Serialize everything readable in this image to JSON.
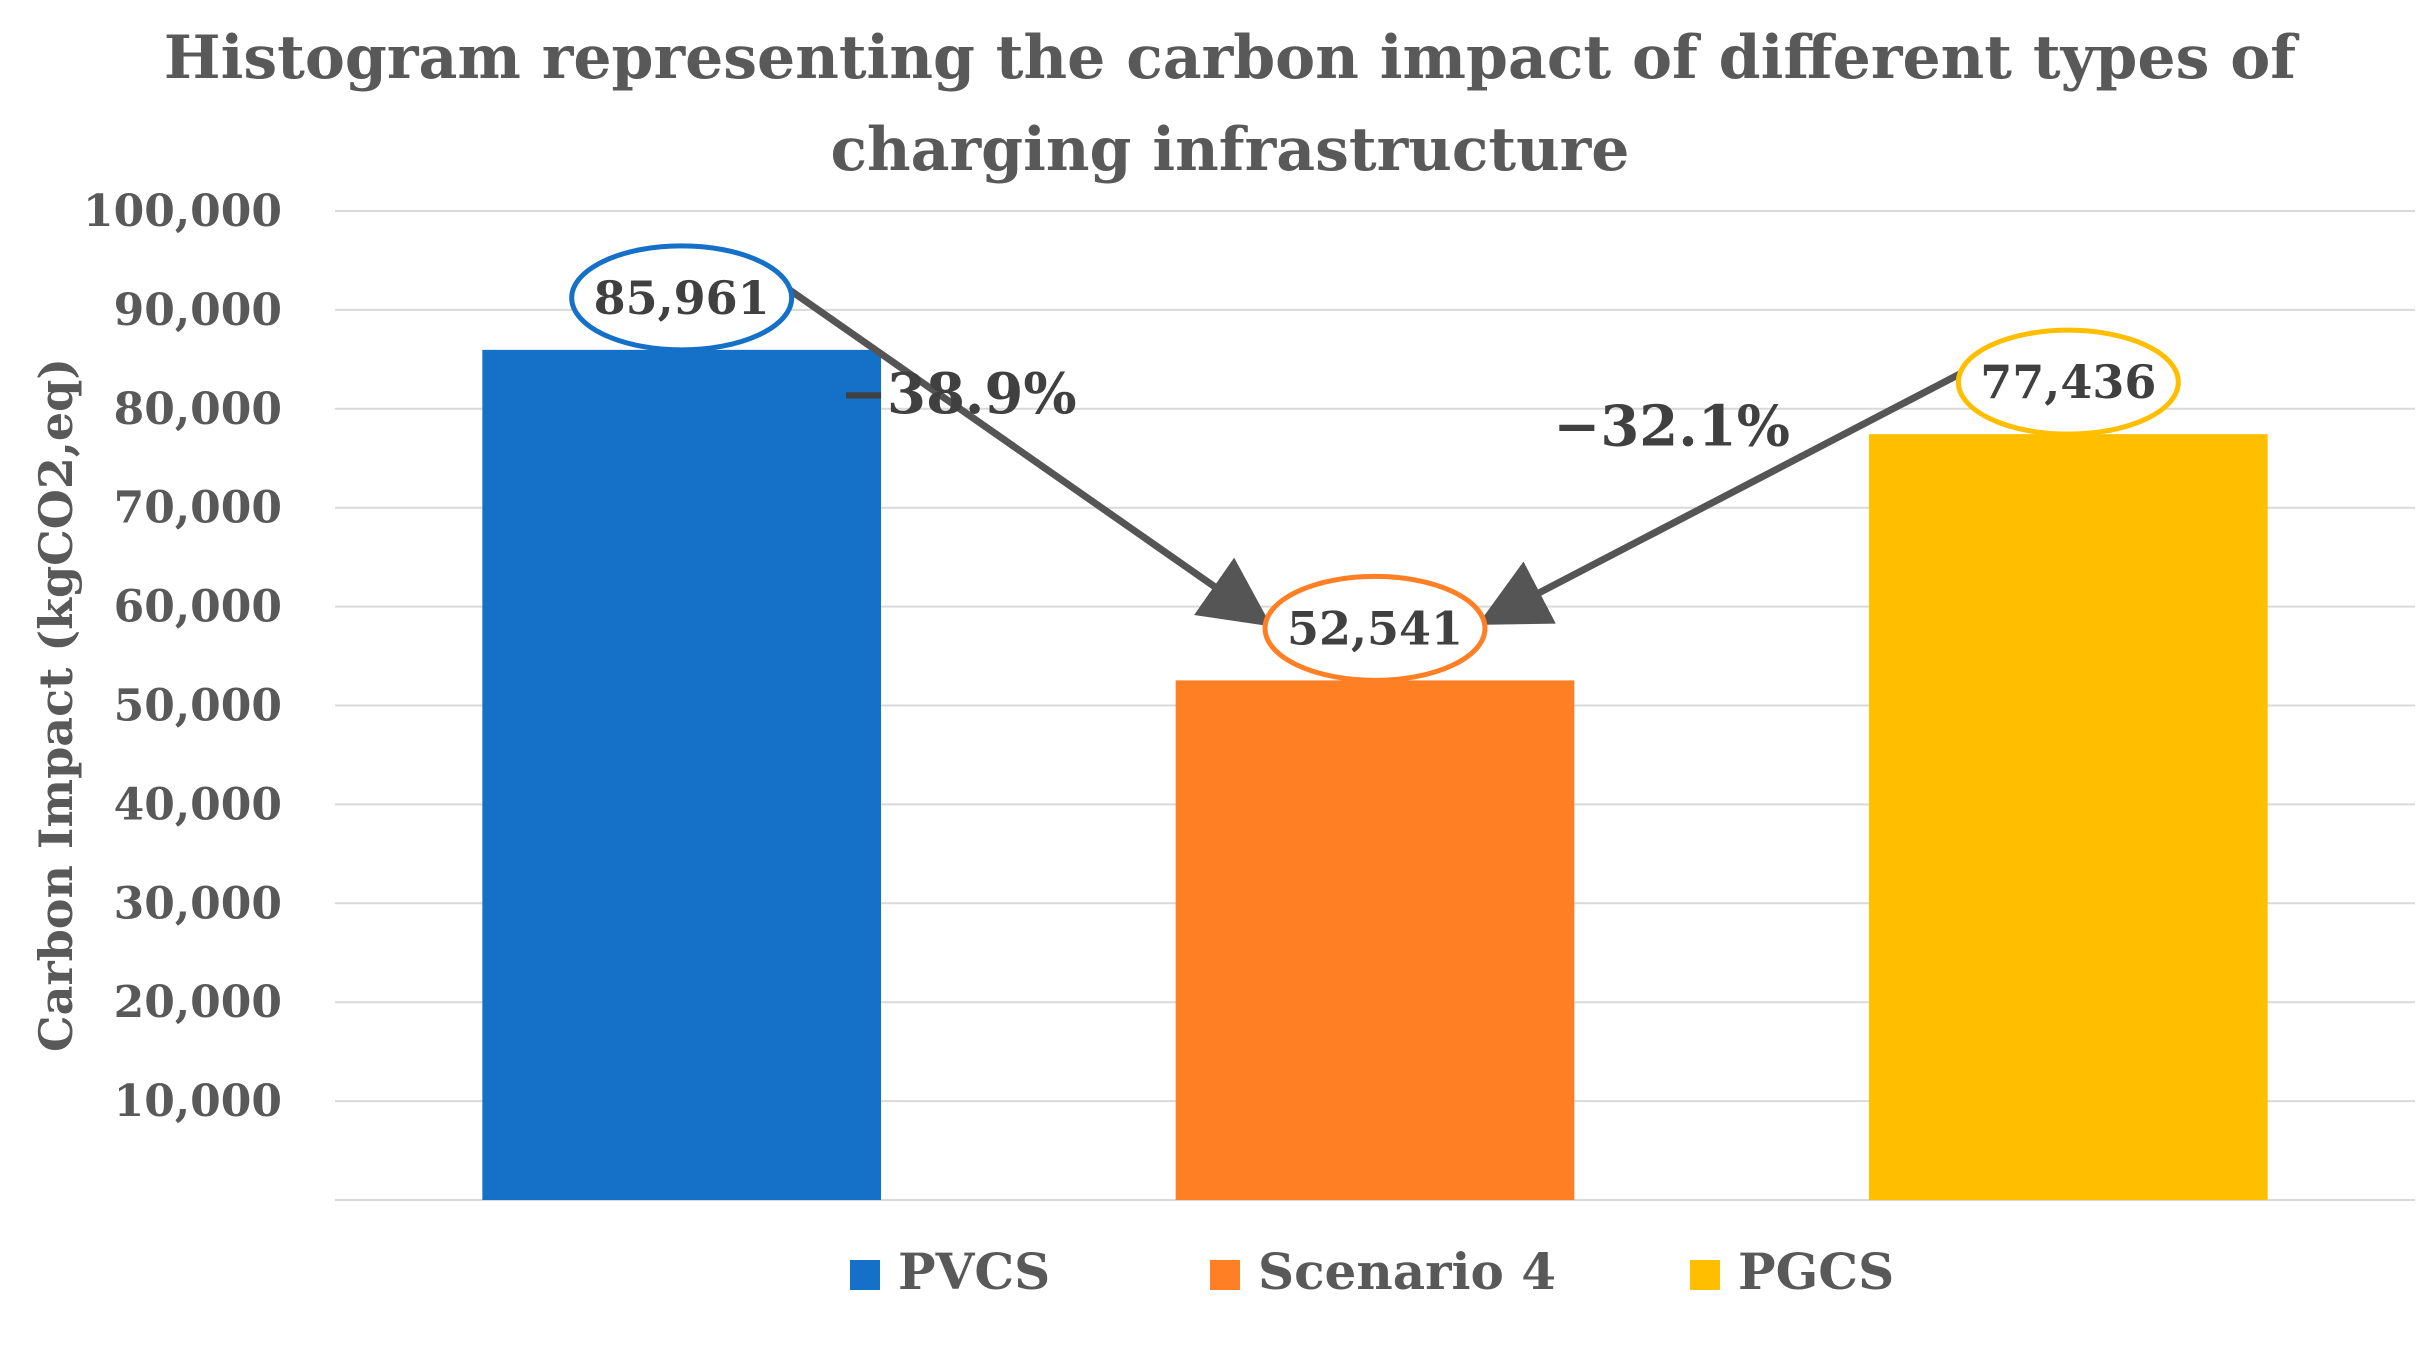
{
  "chart_data": {
    "type": "bar",
    "title_lines": [
      "Histogram representing the carbon impact of different types of",
      "charging infrastructure"
    ],
    "ylabel": "Carbon Impact (kgCO2,eq)",
    "xlabel": "",
    "ylim": [
      0,
      100000
    ],
    "yticks": [
      10000,
      20000,
      30000,
      40000,
      50000,
      60000,
      70000,
      80000,
      90000,
      100000
    ],
    "ytick_labels": [
      "10,000",
      "20,000",
      "30,000",
      "40,000",
      "50,000",
      "60,000",
      "70,000",
      "80,000",
      "90,000",
      "100,000"
    ],
    "grid": true,
    "legend_position": "bottom",
    "categories": [
      "PVCS",
      "Scenario 4",
      "PGCS"
    ],
    "values": [
      85961,
      52541,
      77436
    ],
    "value_labels": [
      "85,961",
      "52,541",
      "77,436"
    ],
    "colors": [
      "#1570C8",
      "#FF7F24",
      "#FFBF00"
    ],
    "annotations": [
      {
        "text": "−38.9%",
        "from": 0,
        "to": 1
      },
      {
        "text": "−32.1%",
        "from": 2,
        "to": 1
      }
    ]
  }
}
